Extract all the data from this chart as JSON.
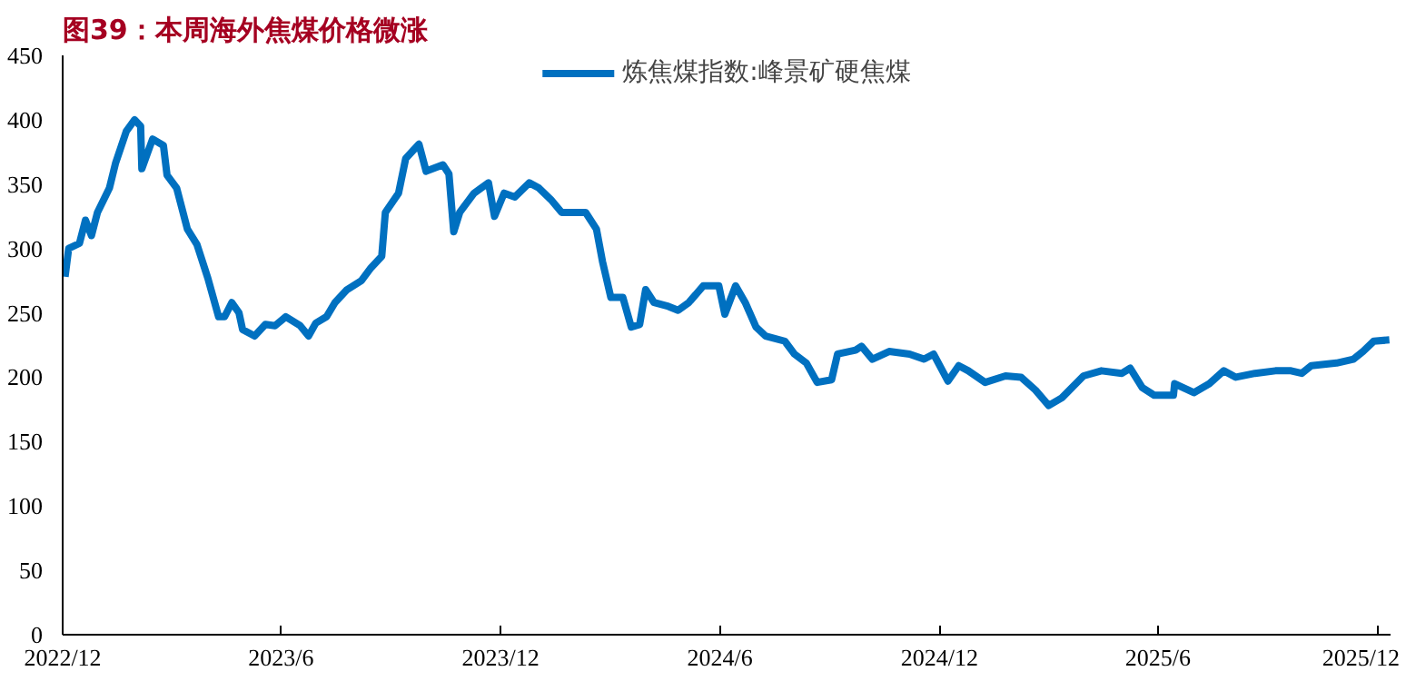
{
  "chart_data": {
    "type": "line",
    "title": "图39：本周海外焦煤价格微涨",
    "x": [
      "2022-12-03",
      "2022-12-06",
      "2022-12-15",
      "2022-12-20",
      "2022-12-25",
      "2022-12-30",
      "2023-01-09",
      "2023-01-14",
      "2023-01-23",
      "2023-01-30",
      "2023-02-04",
      "2023-02-05",
      "2023-02-12",
      "2023-02-14",
      "2023-02-23",
      "2023-02-26",
      "2023-03-06",
      "2023-03-15",
      "2023-03-23",
      "2023-04-01",
      "2023-04-10",
      "2023-04-15",
      "2023-04-21",
      "2023-04-27",
      "2023-04-30",
      "2023-05-10",
      "2023-05-19",
      "2023-05-27",
      "2023-06-05",
      "2023-06-17",
      "2023-06-24",
      "2023-06-30",
      "2023-07-09",
      "2023-07-16",
      "2023-07-26",
      "2023-08-07",
      "2023-08-15",
      "2023-08-24",
      "2023-08-27",
      "2023-09-07",
      "2023-09-13",
      "2023-09-24",
      "2023-09-30",
      "2023-10-14",
      "2023-10-19",
      "2023-10-23",
      "2023-10-28",
      "2023-11-09",
      "2023-11-21",
      "2023-11-26",
      "2023-12-04",
      "2023-12-13",
      "2023-12-25",
      "2024-01-02",
      "2024-01-12",
      "2024-01-21",
      "2024-02-10",
      "2024-02-19",
      "2024-02-24",
      "2024-03-02",
      "2024-03-12",
      "2024-03-19",
      "2024-03-26",
      "2024-03-31",
      "2024-04-07",
      "2024-04-19",
      "2024-04-27",
      "2024-05-06",
      "2024-05-18",
      "2024-05-31",
      "2024-06-05",
      "2024-06-14",
      "2024-06-22",
      "2024-07-01",
      "2024-07-09",
      "2024-07-25",
      "2024-08-02",
      "2024-08-12",
      "2024-08-21",
      "2024-09-02",
      "2024-09-07",
      "2024-09-22",
      "2024-09-27",
      "2024-10-06",
      "2024-10-20",
      "2024-11-06",
      "2024-11-18",
      "2024-11-26",
      "2024-12-08",
      "2024-12-17",
      "2024-12-25",
      "2025-01-08",
      "2025-01-25",
      "2025-02-07",
      "2025-02-19",
      "2025-03-02",
      "2025-03-13",
      "2025-03-31",
      "2025-04-15",
      "2025-05-02",
      "2025-05-09",
      "2025-05-19",
      "2025-05-29",
      "2025-06-14",
      "2025-06-15",
      "2025-07-01",
      "2025-07-14",
      "2025-07-26",
      "2025-08-05",
      "2025-08-21",
      "2025-09-07",
      "2025-09-20",
      "2025-09-29",
      "2025-10-07",
      "2025-10-28",
      "2025-11-11",
      "2025-11-19",
      "2025-11-28",
      "2025-12-11"
    ],
    "series": [
      {
        "name": "炼焦煤指数:峰景矿硬焦煤",
        "color": "#0070c0",
        "values": [
          278,
          300,
          304,
          322,
          310,
          328,
          347,
          366,
          391,
          400,
          395,
          362,
          380,
          385,
          380,
          357,
          347,
          315,
          303,
          277,
          247,
          247,
          258,
          250,
          237,
          232,
          241,
          240,
          247,
          240,
          232,
          242,
          247,
          258,
          268,
          275,
          285,
          294,
          328,
          343,
          370,
          381,
          360,
          365,
          358,
          313,
          328,
          343,
          351,
          325,
          343,
          340,
          351,
          347,
          338,
          328,
          328,
          315,
          290,
          262,
          262,
          239,
          241,
          268,
          258,
          255,
          252,
          258,
          271,
          271,
          249,
          271,
          258,
          239,
          232,
          228,
          218,
          211,
          196,
          198,
          218,
          221,
          224,
          214,
          220,
          218,
          214,
          218,
          197,
          209,
          205,
          196,
          201,
          200,
          190,
          178,
          184,
          201,
          205,
          203,
          207,
          192,
          186,
          186,
          195,
          188,
          195,
          205,
          200,
          203,
          205,
          205,
          203,
          209,
          211,
          214,
          220,
          228,
          229
        ]
      }
    ],
    "xlim": [
      "2022-12-01",
      "2025-12-12"
    ],
    "xticks": [
      {
        "value": "2022-12-01",
        "label": "2022/12"
      },
      {
        "value": "2023-06-01",
        "label": "2023/6"
      },
      {
        "value": "2023-12-01",
        "label": "2023/12"
      },
      {
        "value": "2024-06-01",
        "label": "2024/6"
      },
      {
        "value": "2024-12-01",
        "label": "2024/12"
      },
      {
        "value": "2025-06-01",
        "label": "2025/6"
      },
      {
        "value": "2025-12-01",
        "label": "2025/12"
      }
    ],
    "ylim": [
      0,
      450
    ],
    "yticks": [
      0,
      50,
      100,
      150,
      200,
      250,
      300,
      350,
      400,
      450
    ],
    "legend": "top",
    "grid": false
  }
}
